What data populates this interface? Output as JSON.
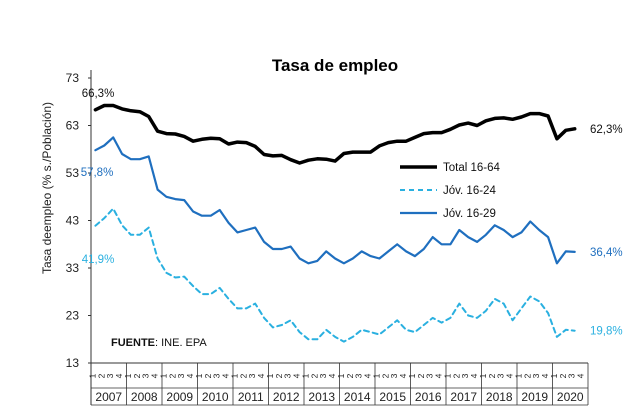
{
  "chart_data": {
    "type": "line",
    "title": "Tasa de empleo",
    "ylabel": "Tasa deempleo (% s./Población)",
    "ylim": [
      13,
      73
    ],
    "yticks": [
      13,
      23,
      33,
      43,
      53,
      63,
      73
    ],
    "years": [
      "2007",
      "2008",
      "2009",
      "2010",
      "2011",
      "2012",
      "2013",
      "2014",
      "2015",
      "2016",
      "2017",
      "2018",
      "2019",
      "2020"
    ],
    "quarter_labels": [
      "1",
      "2",
      "3",
      "4"
    ],
    "source_label": "FUENTE",
    "source_text": ": INE. EPA",
    "legend_position": "center-right",
    "series": [
      {
        "name": "Total 16-64",
        "color": "#000000",
        "style": "solid-thick",
        "first_label": "66,3%",
        "last_label": "62,3%",
        "values": [
          66.3,
          67.2,
          67.2,
          66.5,
          66.1,
          65.9,
          64.9,
          61.8,
          61.3,
          61.2,
          60.7,
          59.7,
          60.1,
          60.3,
          60.2,
          59.1,
          59.5,
          59.4,
          58.6,
          56.9,
          56.6,
          56.7,
          55.8,
          55.1,
          55.7,
          56.0,
          55.9,
          55.5,
          57.1,
          57.4,
          57.4,
          57.4,
          58.7,
          59.4,
          59.7,
          59.7,
          60.5,
          61.3,
          61.5,
          61.5,
          62.2,
          63.1,
          63.5,
          63.0,
          64.0,
          64.5,
          64.6,
          64.3,
          64.8,
          65.5,
          65.5,
          65.0,
          60.2,
          62.0,
          62.3
        ]
      },
      {
        "name": "Jóv. 16-24",
        "color": "#2ab0e0",
        "style": "dashed",
        "first_label": "41,9%",
        "last_label": "19,8%",
        "values": [
          41.9,
          43.5,
          45.5,
          42.0,
          40.0,
          40.0,
          41.5,
          35.0,
          32.0,
          31.0,
          31.2,
          29.2,
          27.5,
          27.5,
          28.8,
          26.5,
          24.5,
          24.5,
          25.5,
          22.5,
          20.5,
          21.0,
          22.0,
          19.5,
          18.0,
          18.0,
          20.0,
          18.5,
          17.5,
          18.5,
          20.0,
          19.5,
          19.0,
          20.5,
          22.0,
          20.0,
          19.5,
          21.0,
          22.5,
          21.5,
          22.5,
          25.5,
          23.0,
          22.5,
          24.0,
          26.5,
          25.5,
          22.0,
          24.5,
          27.0,
          26.0,
          23.5,
          18.5,
          20.0,
          19.8
        ]
      },
      {
        "name": "Jóv. 16-29",
        "color": "#1f6fbf",
        "style": "solid",
        "first_label": "57,8%",
        "last_label": "36,4%",
        "values": [
          57.8,
          58.8,
          60.5,
          57.0,
          55.9,
          55.9,
          56.5,
          49.5,
          48.0,
          47.5,
          47.3,
          44.9,
          44.0,
          44.0,
          45.2,
          42.5,
          40.5,
          41.0,
          41.5,
          38.5,
          37.0,
          37.0,
          37.5,
          35.0,
          34.0,
          34.5,
          36.5,
          35.0,
          34.0,
          35.0,
          36.5,
          35.5,
          35.0,
          36.5,
          38.0,
          36.5,
          35.5,
          37.0,
          39.5,
          38.0,
          38.0,
          41.0,
          39.5,
          38.5,
          40.0,
          42.0,
          41.0,
          39.5,
          40.5,
          42.8,
          41.0,
          39.5,
          34.0,
          36.5,
          36.4
        ]
      }
    ]
  }
}
